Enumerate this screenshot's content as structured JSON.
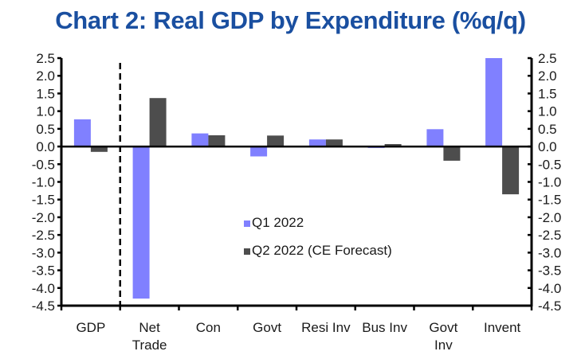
{
  "chart_data": {
    "type": "bar",
    "title": "Chart 2: Real GDP by Expenditure (%q/q)",
    "xlabel": "",
    "ylabel": "",
    "ylim": [
      -4.5,
      2.5
    ],
    "ytick_step": 0.5,
    "yticks": [
      "2.5",
      "2.0",
      "1.5",
      "1.0",
      "0.5",
      "0.0",
      "-0.5",
      "-1.0",
      "-1.5",
      "-2.0",
      "-2.5",
      "-3.0",
      "-3.5",
      "-4.0",
      "-4.5"
    ],
    "secondary_axis": true,
    "grid": false,
    "legend_position": "center",
    "divider_after_category": "GDP",
    "categories": [
      [
        "GDP"
      ],
      [
        "Net",
        "Trade"
      ],
      [
        "Con"
      ],
      [
        "Govt"
      ],
      [
        "Resi Inv"
      ],
      [
        "Bus Inv"
      ],
      [
        "Govt",
        "Inv"
      ],
      [
        "Invent"
      ]
    ],
    "series": [
      {
        "name": "Q1 2022",
        "color": "#8080ff",
        "values": [
          0.77,
          -4.3,
          0.37,
          -0.28,
          0.2,
          -0.04,
          0.49,
          2.5
        ]
      },
      {
        "name": "Q2 2022 (CE Forecast)",
        "color": "#4d4d4d",
        "values": [
          -0.15,
          1.37,
          0.32,
          0.31,
          0.2,
          0.07,
          -0.4,
          -1.35
        ]
      }
    ]
  }
}
